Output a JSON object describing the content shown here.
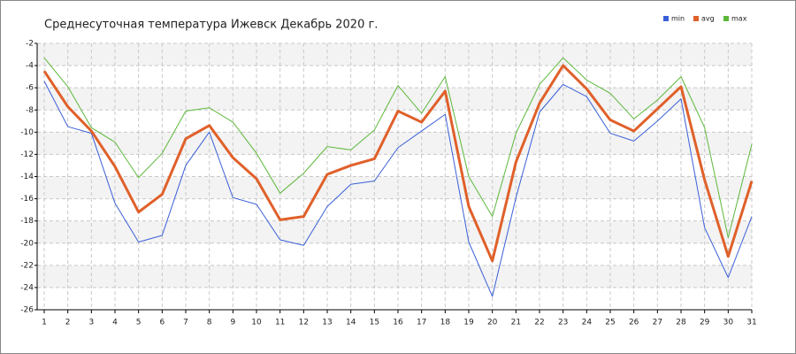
{
  "chart_data": {
    "type": "line",
    "title": "Среднесуточная температура Ижевск  Декабрь 2020 г.",
    "x": [
      1,
      2,
      3,
      4,
      5,
      6,
      7,
      8,
      9,
      10,
      11,
      12,
      13,
      14,
      15,
      16,
      17,
      18,
      19,
      20,
      21,
      22,
      23,
      24,
      25,
      26,
      27,
      28,
      29,
      30,
      31
    ],
    "series": [
      {
        "name": "min",
        "color": "#3a5fd8",
        "width": 1,
        "values": [
          -5.4,
          -9.5,
          -10.1,
          -16.4,
          -19.9,
          -19.3,
          -13.0,
          -10.0,
          -15.9,
          -16.5,
          -19.7,
          -20.2,
          -16.7,
          -14.7,
          -14.4,
          -11.4,
          -9.9,
          -8.4,
          -19.9,
          -24.8,
          -15.9,
          -8.2,
          -5.7,
          -6.8,
          -10.1,
          -10.8,
          -9.0,
          -7.0,
          -18.6,
          -23.1,
          -17.6
        ]
      },
      {
        "name": "avg",
        "color": "#e0602a",
        "width": 3,
        "values": [
          -4.5,
          -7.7,
          -9.9,
          -13.1,
          -17.2,
          -15.6,
          -10.6,
          -9.4,
          -12.3,
          -14.2,
          -17.9,
          -17.6,
          -13.8,
          -13.0,
          -12.4,
          -8.1,
          -9.1,
          -6.3,
          -16.7,
          -21.6,
          -12.7,
          -7.4,
          -4.0,
          -6.1,
          -8.9,
          -9.9,
          -7.9,
          -5.9,
          -14.3,
          -21.2,
          -14.4
        ]
      },
      {
        "name": "max",
        "color": "#5cb83a",
        "width": 1,
        "values": [
          -3.3,
          -5.9,
          -9.6,
          -10.9,
          -14.1,
          -11.9,
          -8.1,
          -7.8,
          -9.1,
          -11.9,
          -15.5,
          -13.7,
          -11.3,
          -11.6,
          -9.8,
          -5.8,
          -8.3,
          -5.0,
          -14.0,
          -17.6,
          -10.1,
          -5.7,
          -3.3,
          -5.3,
          -6.5,
          -8.8,
          -7.1,
          -5.0,
          -9.6,
          -19.5,
          -11.1
        ]
      }
    ],
    "xlim": [
      0.7,
      31
    ],
    "xticks": [
      1,
      2,
      3,
      4,
      5,
      6,
      7,
      8,
      9,
      10,
      11,
      12,
      13,
      14,
      15,
      16,
      17,
      18,
      19,
      20,
      21,
      22,
      23,
      24,
      25,
      26,
      27,
      28,
      29,
      30,
      31
    ],
    "ylim": [
      -26,
      -2
    ],
    "yticks": [
      -26,
      -24,
      -22,
      -20,
      -18,
      -16,
      -14,
      -12,
      -10,
      -8,
      -6,
      -4,
      -2
    ],
    "grid": true,
    "legend": "top-right"
  }
}
